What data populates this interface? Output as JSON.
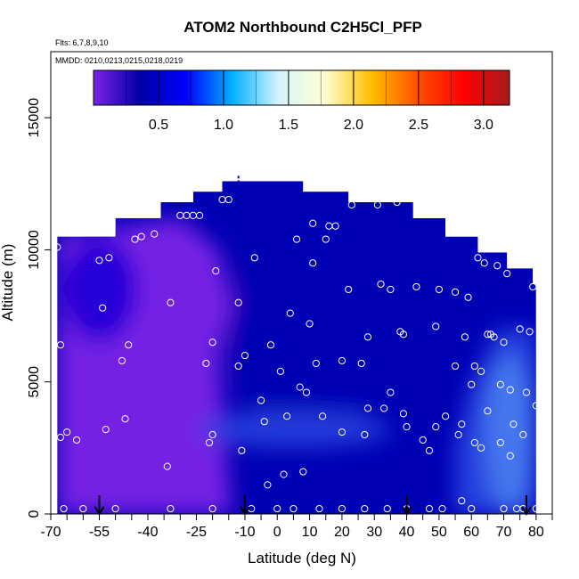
{
  "chart_data": {
    "type": "heatmap",
    "title": "ATOM2 Northbound C2H5Cl_PFP",
    "flights_note": "Flts: 6,7,8,9,10",
    "dates_note": "MMDD: 0210,0213,0215,0218,0219",
    "xlabel": "Latitude (deg N)",
    "ylabel": "Altitude (m)",
    "xlim": [
      -70,
      85
    ],
    "ylim": [
      0,
      17500
    ],
    "x_ticks": [
      -70,
      -55,
      -40,
      -25,
      -10,
      0,
      10,
      20,
      30,
      40,
      50,
      60,
      70,
      80
    ],
    "x_tick_labels": [
      "-70",
      "-55",
      "-40",
      "-25",
      "-10",
      "0",
      "10",
      "20",
      "30",
      "40",
      "50",
      "60",
      "70",
      "80"
    ],
    "x_minor_ticks": [
      -65,
      -60,
      -50,
      -45,
      -35,
      -30,
      -20,
      -15,
      -5,
      5,
      15,
      25,
      35,
      45,
      55,
      65,
      75,
      85
    ],
    "y_ticks": [
      0,
      5000,
      10000,
      15000
    ],
    "y_tick_labels": [
      "0",
      "5000",
      "10000",
      "15000"
    ],
    "colorbar": {
      "min": 0.0,
      "max": 3.2,
      "ticks": [
        0.5,
        1.0,
        1.5,
        2.0,
        2.5,
        3.0
      ],
      "tick_labels": [
        "0.5",
        "1.0",
        "1.5",
        "2.0",
        "2.5",
        "3.0"
      ],
      "colors": [
        "#7b22e6",
        "#0000a6",
        "#0000ff",
        "#00b0ff",
        "#d5f4ff",
        "#ffffd0",
        "#ffc000",
        "#ff5000",
        "#ff0000",
        "#a31d1d"
      ]
    },
    "colors": {
      "low": "#7b22e6",
      "mid_low": "#1a00d5",
      "core": "#0000b5",
      "mid": "#2845e0",
      "high": "#4a80f0"
    },
    "field_envelope": [
      [
        -68,
        10500
      ],
      [
        -50,
        10500
      ],
      [
        -50,
        11200
      ],
      [
        -36,
        11200
      ],
      [
        -36,
        11800
      ],
      [
        -26,
        11800
      ],
      [
        -26,
        12200
      ],
      [
        -17,
        12200
      ],
      [
        -17,
        12600
      ],
      [
        8,
        12600
      ],
      [
        8,
        12200
      ],
      [
        22,
        12200
      ],
      [
        22,
        11800
      ],
      [
        42,
        11800
      ],
      [
        42,
        11200
      ],
      [
        52,
        11200
      ],
      [
        52,
        10500
      ],
      [
        62,
        10500
      ],
      [
        62,
        9900
      ],
      [
        71,
        9900
      ],
      [
        71,
        9300
      ],
      [
        79,
        9300
      ],
      [
        79,
        8700
      ],
      [
        80,
        8700
      ]
    ],
    "field_regions": [
      {
        "name": "southern-low",
        "color": "low",
        "points": [
          [
            -68,
            0
          ],
          [
            -14,
            0
          ],
          [
            -16,
            2500
          ],
          [
            -18,
            6000
          ],
          [
            -14,
            8000
          ],
          [
            -18,
            10000
          ],
          [
            -30,
            11200
          ],
          [
            -68,
            10500
          ]
        ]
      },
      {
        "name": "polar-north",
        "color": "mid",
        "points": [
          [
            55,
            0
          ],
          [
            80,
            0
          ],
          [
            80,
            7000
          ],
          [
            68,
            7000
          ],
          [
            60,
            5000
          ],
          [
            55,
            2500
          ]
        ]
      }
    ],
    "field_patches": [
      {
        "name": "southern-deep",
        "color": "mid_low",
        "cx": -55,
        "cy": 8500,
        "rx": 12,
        "ry": 2000
      },
      {
        "name": "midlat-core",
        "color": "core",
        "cx": 10,
        "cy": 7000,
        "rx": 25,
        "ry": 4000
      },
      {
        "name": "low-band",
        "color": "mid",
        "cx": 5,
        "cy": 3200,
        "rx": 30,
        "ry": 700
      },
      {
        "name": "polar-high",
        "color": "high",
        "cx": 72,
        "cy": 3000,
        "rx": 8,
        "ry": 3000
      }
    ],
    "samples": [
      [
        -68,
        10100
      ],
      [
        -67,
        6400
      ],
      [
        -67,
        2900
      ],
      [
        -66,
        200
      ],
      [
        -65,
        3100
      ],
      [
        -62,
        2800
      ],
      [
        -60,
        200
      ],
      [
        -55,
        9600
      ],
      [
        -54,
        7800
      ],
      [
        -53,
        3200
      ],
      [
        -52,
        9700
      ],
      [
        -50,
        200
      ],
      [
        -48,
        5800
      ],
      [
        -47,
        3600
      ],
      [
        -46,
        6400
      ],
      [
        -44,
        10400
      ],
      [
        -42,
        10500
      ],
      [
        -38,
        10600
      ],
      [
        -34,
        1800
      ],
      [
        -33,
        8000
      ],
      [
        -33,
        200
      ],
      [
        -30,
        11300
      ],
      [
        -28,
        11300
      ],
      [
        -26,
        11300
      ],
      [
        -24,
        11300
      ],
      [
        -22,
        5700
      ],
      [
        -21,
        2700
      ],
      [
        -20,
        3000
      ],
      [
        -20,
        200
      ],
      [
        -20,
        6500
      ],
      [
        -19,
        9200
      ],
      [
        -17,
        11900
      ],
      [
        -15,
        11900
      ],
      [
        -12,
        8000
      ],
      [
        -12,
        5600
      ],
      [
        -11,
        2400
      ],
      [
        -10,
        6000
      ],
      [
        -8,
        200
      ],
      [
        -7,
        9700
      ],
      [
        -5,
        4300
      ],
      [
        -4,
        3500
      ],
      [
        -3,
        1100
      ],
      [
        -2,
        6400
      ],
      [
        0,
        200
      ],
      [
        1,
        5400
      ],
      [
        2,
        1500
      ],
      [
        3,
        3700
      ],
      [
        4,
        7600
      ],
      [
        5,
        200
      ],
      [
        6,
        10400
      ],
      [
        7,
        4800
      ],
      [
        8,
        1600
      ],
      [
        9,
        4600
      ],
      [
        10,
        7200
      ],
      [
        11,
        9500
      ],
      [
        11,
        11000
      ],
      [
        12,
        5700
      ],
      [
        13,
        200
      ],
      [
        14,
        3700
      ],
      [
        15,
        10400
      ],
      [
        16,
        10900
      ],
      [
        18,
        10900
      ],
      [
        20,
        5800
      ],
      [
        20,
        3100
      ],
      [
        20,
        200
      ],
      [
        22,
        8500
      ],
      [
        23,
        11700
      ],
      [
        26,
        5700
      ],
      [
        27,
        3000
      ],
      [
        27,
        200
      ],
      [
        28,
        6700
      ],
      [
        28,
        4000
      ],
      [
        31,
        11700
      ],
      [
        32,
        8700
      ],
      [
        33,
        4000
      ],
      [
        34,
        200
      ],
      [
        35,
        8500
      ],
      [
        35,
        4600
      ],
      [
        37,
        11800
      ],
      [
        38,
        6900
      ],
      [
        39,
        6800
      ],
      [
        39,
        3800
      ],
      [
        40,
        3300
      ],
      [
        40,
        200
      ],
      [
        43,
        8600
      ],
      [
        45,
        2800
      ],
      [
        47,
        2400
      ],
      [
        47,
        200
      ],
      [
        49,
        7100
      ],
      [
        49,
        3300
      ],
      [
        50,
        8500
      ],
      [
        51,
        200
      ],
      [
        52,
        3700
      ],
      [
        55,
        8400
      ],
      [
        55,
        5600
      ],
      [
        56,
        3000
      ],
      [
        57,
        3400
      ],
      [
        57,
        500
      ],
      [
        58,
        6700
      ],
      [
        59,
        8200
      ],
      [
        60,
        4900
      ],
      [
        60,
        200
      ],
      [
        61,
        2700
      ],
      [
        61,
        5600
      ],
      [
        62,
        9700
      ],
      [
        63,
        2500
      ],
      [
        63,
        5400
      ],
      [
        64,
        9500
      ],
      [
        65,
        6800
      ],
      [
        65,
        3900
      ],
      [
        66,
        6800
      ],
      [
        67,
        6700
      ],
      [
        68,
        9400
      ],
      [
        69,
        2700
      ],
      [
        69,
        4900
      ],
      [
        70,
        6500
      ],
      [
        70,
        200
      ],
      [
        71,
        9100
      ],
      [
        72,
        4700
      ],
      [
        72,
        2200
      ],
      [
        73,
        3400
      ],
      [
        74,
        200
      ],
      [
        75,
        7000
      ],
      [
        76,
        3000
      ],
      [
        76,
        200
      ],
      [
        77,
        4600
      ],
      [
        78,
        6900
      ],
      [
        79,
        8600
      ],
      [
        80,
        4100
      ],
      [
        80,
        200
      ]
    ],
    "arrows": [
      -55,
      -10,
      40,
      77
    ],
    "marker_top": [
      -12,
      12800
    ]
  }
}
